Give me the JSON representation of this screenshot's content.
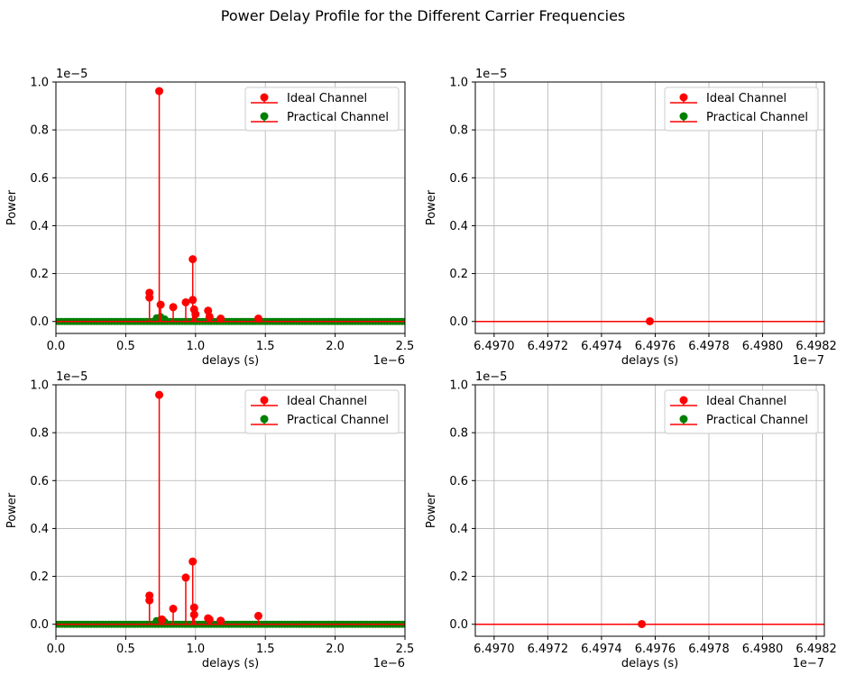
{
  "figure": {
    "title": "Power Delay Profile for the Different Carrier Frequencies"
  },
  "chart_data": [
    {
      "type": "stem",
      "title": "",
      "xlabel": "delays (s)",
      "ylabel": "Power",
      "x_scale_text": "1e−6",
      "y_scale_text": "1e−5",
      "xlim": [
        0,
        2.5
      ],
      "ylim": [
        -0.05,
        1.0
      ],
      "xticks": [
        0,
        0.5,
        1.0,
        1.5,
        2.0,
        2.5
      ],
      "xtick_labels": [
        "0.0",
        "0.5",
        "1.0",
        "1.5",
        "2.0",
        "2.5"
      ],
      "yticks": [
        0,
        0.2,
        0.4,
        0.6,
        0.8,
        1.0
      ],
      "ytick_labels": [
        "0.0",
        "0.2",
        "0.4",
        "0.6",
        "0.8",
        "1.0"
      ],
      "grid": true,
      "legend_position": "upper right",
      "series": [
        {
          "name": "Ideal Channel",
          "color": "#ff0000",
          "points": [
            [
              0.67,
              0.12
            ],
            [
              0.67,
              0.1
            ],
            [
              0.74,
              0.962
            ],
            [
              0.75,
              0.07
            ],
            [
              0.84,
              0.06
            ],
            [
              0.93,
              0.08
            ],
            [
              0.98,
              0.26
            ],
            [
              0.98,
              0.09
            ],
            [
              0.99,
              0.05
            ],
            [
              1.0,
              0.03
            ],
            [
              1.09,
              0.045
            ],
            [
              1.1,
              0.02
            ],
            [
              1.18,
              0.012
            ],
            [
              1.45,
              0.012
            ]
          ]
        },
        {
          "name": "Practical Channel",
          "color": "#008000",
          "x_range": [
            0,
            2.5
          ],
          "count": 120,
          "points": [
            [
              0.72,
              0.015
            ],
            [
              0.75,
              0.02
            ],
            [
              0.78,
              0.01
            ]
          ]
        }
      ]
    },
    {
      "type": "stem",
      "title": "",
      "xlabel": "delays (s)",
      "ylabel": "Power",
      "x_scale_text": "1e−7",
      "y_scale_text": "1e−5",
      "xlim": [
        6.49693,
        6.49823
      ],
      "ylim": [
        -0.05,
        1.0
      ],
      "xticks": [
        6.497,
        6.4972,
        6.4974,
        6.4976,
        6.4978,
        6.498,
        6.4982
      ],
      "xtick_labels": [
        "6.4970",
        "6.4972",
        "6.4974",
        "6.4976",
        "6.4978",
        "6.4980",
        "6.4982"
      ],
      "yticks": [
        0,
        0.2,
        0.4,
        0.6,
        0.8,
        1.0
      ],
      "ytick_labels": [
        "0.0",
        "0.2",
        "0.4",
        "0.6",
        "0.8",
        "1.0"
      ],
      "grid": true,
      "legend_position": "upper right",
      "series": [
        {
          "name": "Ideal Channel",
          "color": "#ff0000",
          "points": [
            [
              6.49758,
              0.001
            ]
          ]
        },
        {
          "name": "Practical Channel",
          "color": "#008000",
          "points": []
        }
      ]
    },
    {
      "type": "stem",
      "title": "",
      "xlabel": "delays (s)",
      "ylabel": "Power",
      "x_scale_text": "1e−6",
      "y_scale_text": "1e−5",
      "xlim": [
        0,
        2.5
      ],
      "ylim": [
        -0.05,
        1.0
      ],
      "xticks": [
        0,
        0.5,
        1.0,
        1.5,
        2.0,
        2.5
      ],
      "xtick_labels": [
        "0.0",
        "0.5",
        "1.0",
        "1.5",
        "2.0",
        "2.5"
      ],
      "yticks": [
        0,
        0.2,
        0.4,
        0.6,
        0.8,
        1.0
      ],
      "ytick_labels": [
        "0.0",
        "0.2",
        "0.4",
        "0.6",
        "0.8",
        "1.0"
      ],
      "grid": true,
      "legend_position": "upper right",
      "series": [
        {
          "name": "Ideal Channel",
          "color": "#ff0000",
          "points": [
            [
              0.67,
              0.12
            ],
            [
              0.67,
              0.1
            ],
            [
              0.74,
              0.958
            ],
            [
              0.76,
              0.02
            ],
            [
              0.84,
              0.065
            ],
            [
              0.93,
              0.195
            ],
            [
              0.98,
              0.262
            ],
            [
              0.99,
              0.07
            ],
            [
              0.99,
              0.04
            ],
            [
              1.09,
              0.025
            ],
            [
              1.1,
              0.02
            ],
            [
              1.18,
              0.015
            ],
            [
              1.45,
              0.035
            ]
          ]
        },
        {
          "name": "Practical Channel",
          "color": "#008000",
          "x_range": [
            0,
            2.5
          ],
          "count": 120,
          "points": [
            [
              0.72,
              0.015
            ],
            [
              0.75,
              0.02
            ],
            [
              0.78,
              0.01
            ]
          ]
        }
      ]
    },
    {
      "type": "stem",
      "title": "",
      "xlabel": "delays (s)",
      "ylabel": "Power",
      "x_scale_text": "1e−7",
      "y_scale_text": "1e−5",
      "xlim": [
        6.49693,
        6.49823
      ],
      "ylim": [
        -0.05,
        1.0
      ],
      "xticks": [
        6.497,
        6.4972,
        6.4974,
        6.4976,
        6.4978,
        6.498,
        6.4982
      ],
      "xtick_labels": [
        "6.4970",
        "6.4972",
        "6.4974",
        "6.4976",
        "6.4978",
        "6.4980",
        "6.4982"
      ],
      "yticks": [
        0,
        0.2,
        0.4,
        0.6,
        0.8,
        1.0
      ],
      "ytick_labels": [
        "0.0",
        "0.2",
        "0.4",
        "0.6",
        "0.8",
        "1.0"
      ],
      "grid": true,
      "legend_position": "upper right",
      "series": [
        {
          "name": "Ideal Channel",
          "color": "#ff0000",
          "points": [
            [
              6.49755,
              0.001
            ]
          ]
        },
        {
          "name": "Practical Channel",
          "color": "#008000",
          "points": []
        }
      ]
    }
  ]
}
